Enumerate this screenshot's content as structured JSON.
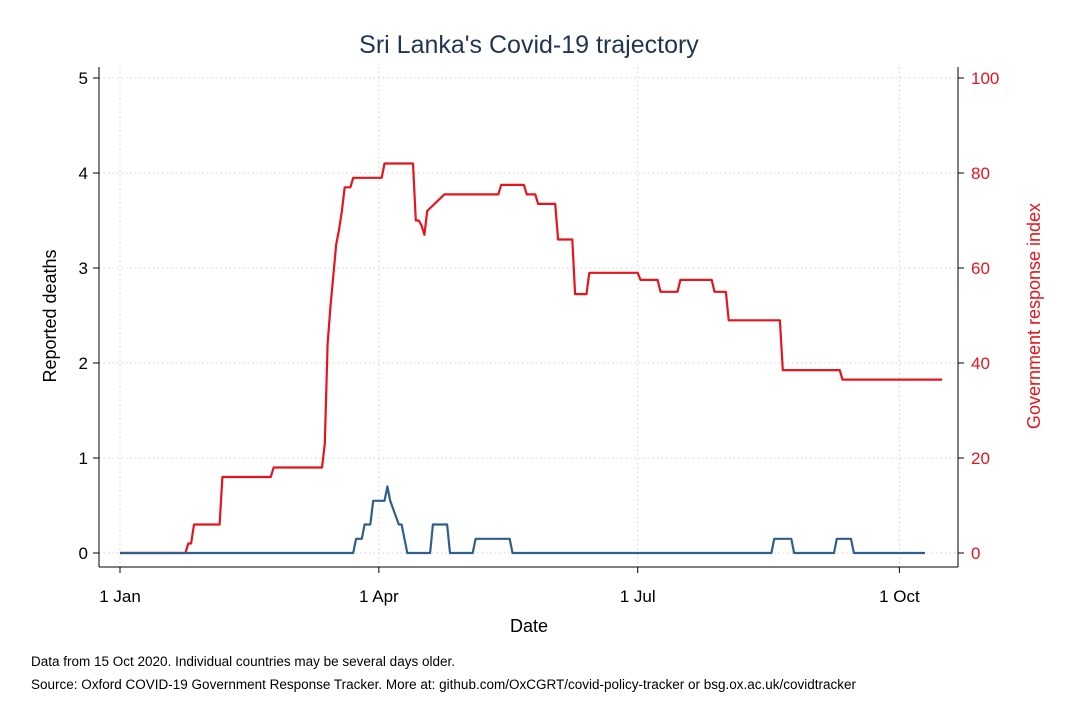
{
  "chart_data": {
    "type": "line",
    "title": "Sri Lanka's Covid-19 trajectory",
    "xlabel": "Date",
    "ylabel_left": "Reported deaths",
    "ylabel_right": "Government response index",
    "x_ticks": [
      "1 Jan",
      "1 Apr",
      "1 Jul",
      "1 Oct"
    ],
    "x_tick_days": [
      0,
      91,
      182,
      274
    ],
    "xlim_days": [
      0,
      288
    ],
    "ylim_left": [
      0,
      5
    ],
    "y_ticks_left": [
      "0",
      "1",
      "2",
      "3",
      "4",
      "5"
    ],
    "ylim_right": [
      0,
      100
    ],
    "y_ticks_right": [
      "0",
      "20",
      "40",
      "60",
      "80",
      "100"
    ],
    "grid": true,
    "colors": {
      "deaths": "#2f5f8a",
      "response": "#e8141b",
      "title": "#1f3552"
    },
    "series": [
      {
        "axis": "left",
        "x_days": [
          0,
          82,
          83,
          85,
          86,
          88,
          89,
          91,
          92,
          93,
          94,
          95,
          98,
          99,
          101,
          102,
          109,
          110,
          115,
          116,
          124,
          125,
          137,
          138,
          151,
          152,
          229,
          230,
          236,
          237,
          251,
          252,
          257,
          258,
          283
        ],
        "values": [
          0,
          0,
          0.15,
          0.15,
          0.3,
          0.3,
          0.55,
          0.55,
          0.55,
          0.55,
          0.7,
          0.55,
          0.3,
          0.3,
          0,
          0,
          0,
          0.3,
          0.3,
          0,
          0,
          0.15,
          0.15,
          0,
          0,
          0,
          0,
          0.15,
          0.15,
          0,
          0,
          0.15,
          0.15,
          0,
          0
        ]
      },
      {
        "axis": "right",
        "x_days": [
          0,
          23,
          24,
          25,
          26,
          35,
          36,
          53,
          54,
          71,
          72,
          73,
          74,
          76,
          77,
          78,
          79,
          81,
          82,
          85,
          86,
          92,
          93,
          96,
          97,
          103,
          104,
          105,
          106,
          107,
          108,
          114,
          115,
          133,
          134,
          142,
          143,
          146,
          147,
          153,
          154,
          159,
          160,
          164,
          165,
          182,
          183,
          189,
          190,
          196,
          197,
          208,
          209,
          213,
          214,
          232,
          233,
          253,
          254,
          289
        ],
        "values": [
          0,
          0,
          2,
          2,
          6,
          6,
          16,
          16,
          18,
          18,
          23,
          44,
          52,
          65,
          68,
          72,
          77,
          77,
          79,
          79,
          79,
          79,
          82,
          82,
          82,
          82,
          70,
          70,
          69,
          67,
          72,
          75.5,
          75.5,
          75.5,
          77.5,
          77.5,
          75.5,
          75.5,
          73.5,
          73.5,
          66,
          66,
          54.5,
          54.5,
          59,
          59,
          57.5,
          57.5,
          55,
          55,
          57.5,
          57.5,
          55,
          55,
          49,
          49,
          38.5,
          38.5,
          36.5,
          36.5
        ]
      }
    ],
    "footnotes": [
      "Data from 15 Oct 2020. Individual countries may be several days older.",
      "Source: Oxford COVID-19 Government Response Tracker. More at: github.com/OxCGRT/covid-policy-tracker or bsg.ox.ac.uk/covidtracker"
    ]
  }
}
